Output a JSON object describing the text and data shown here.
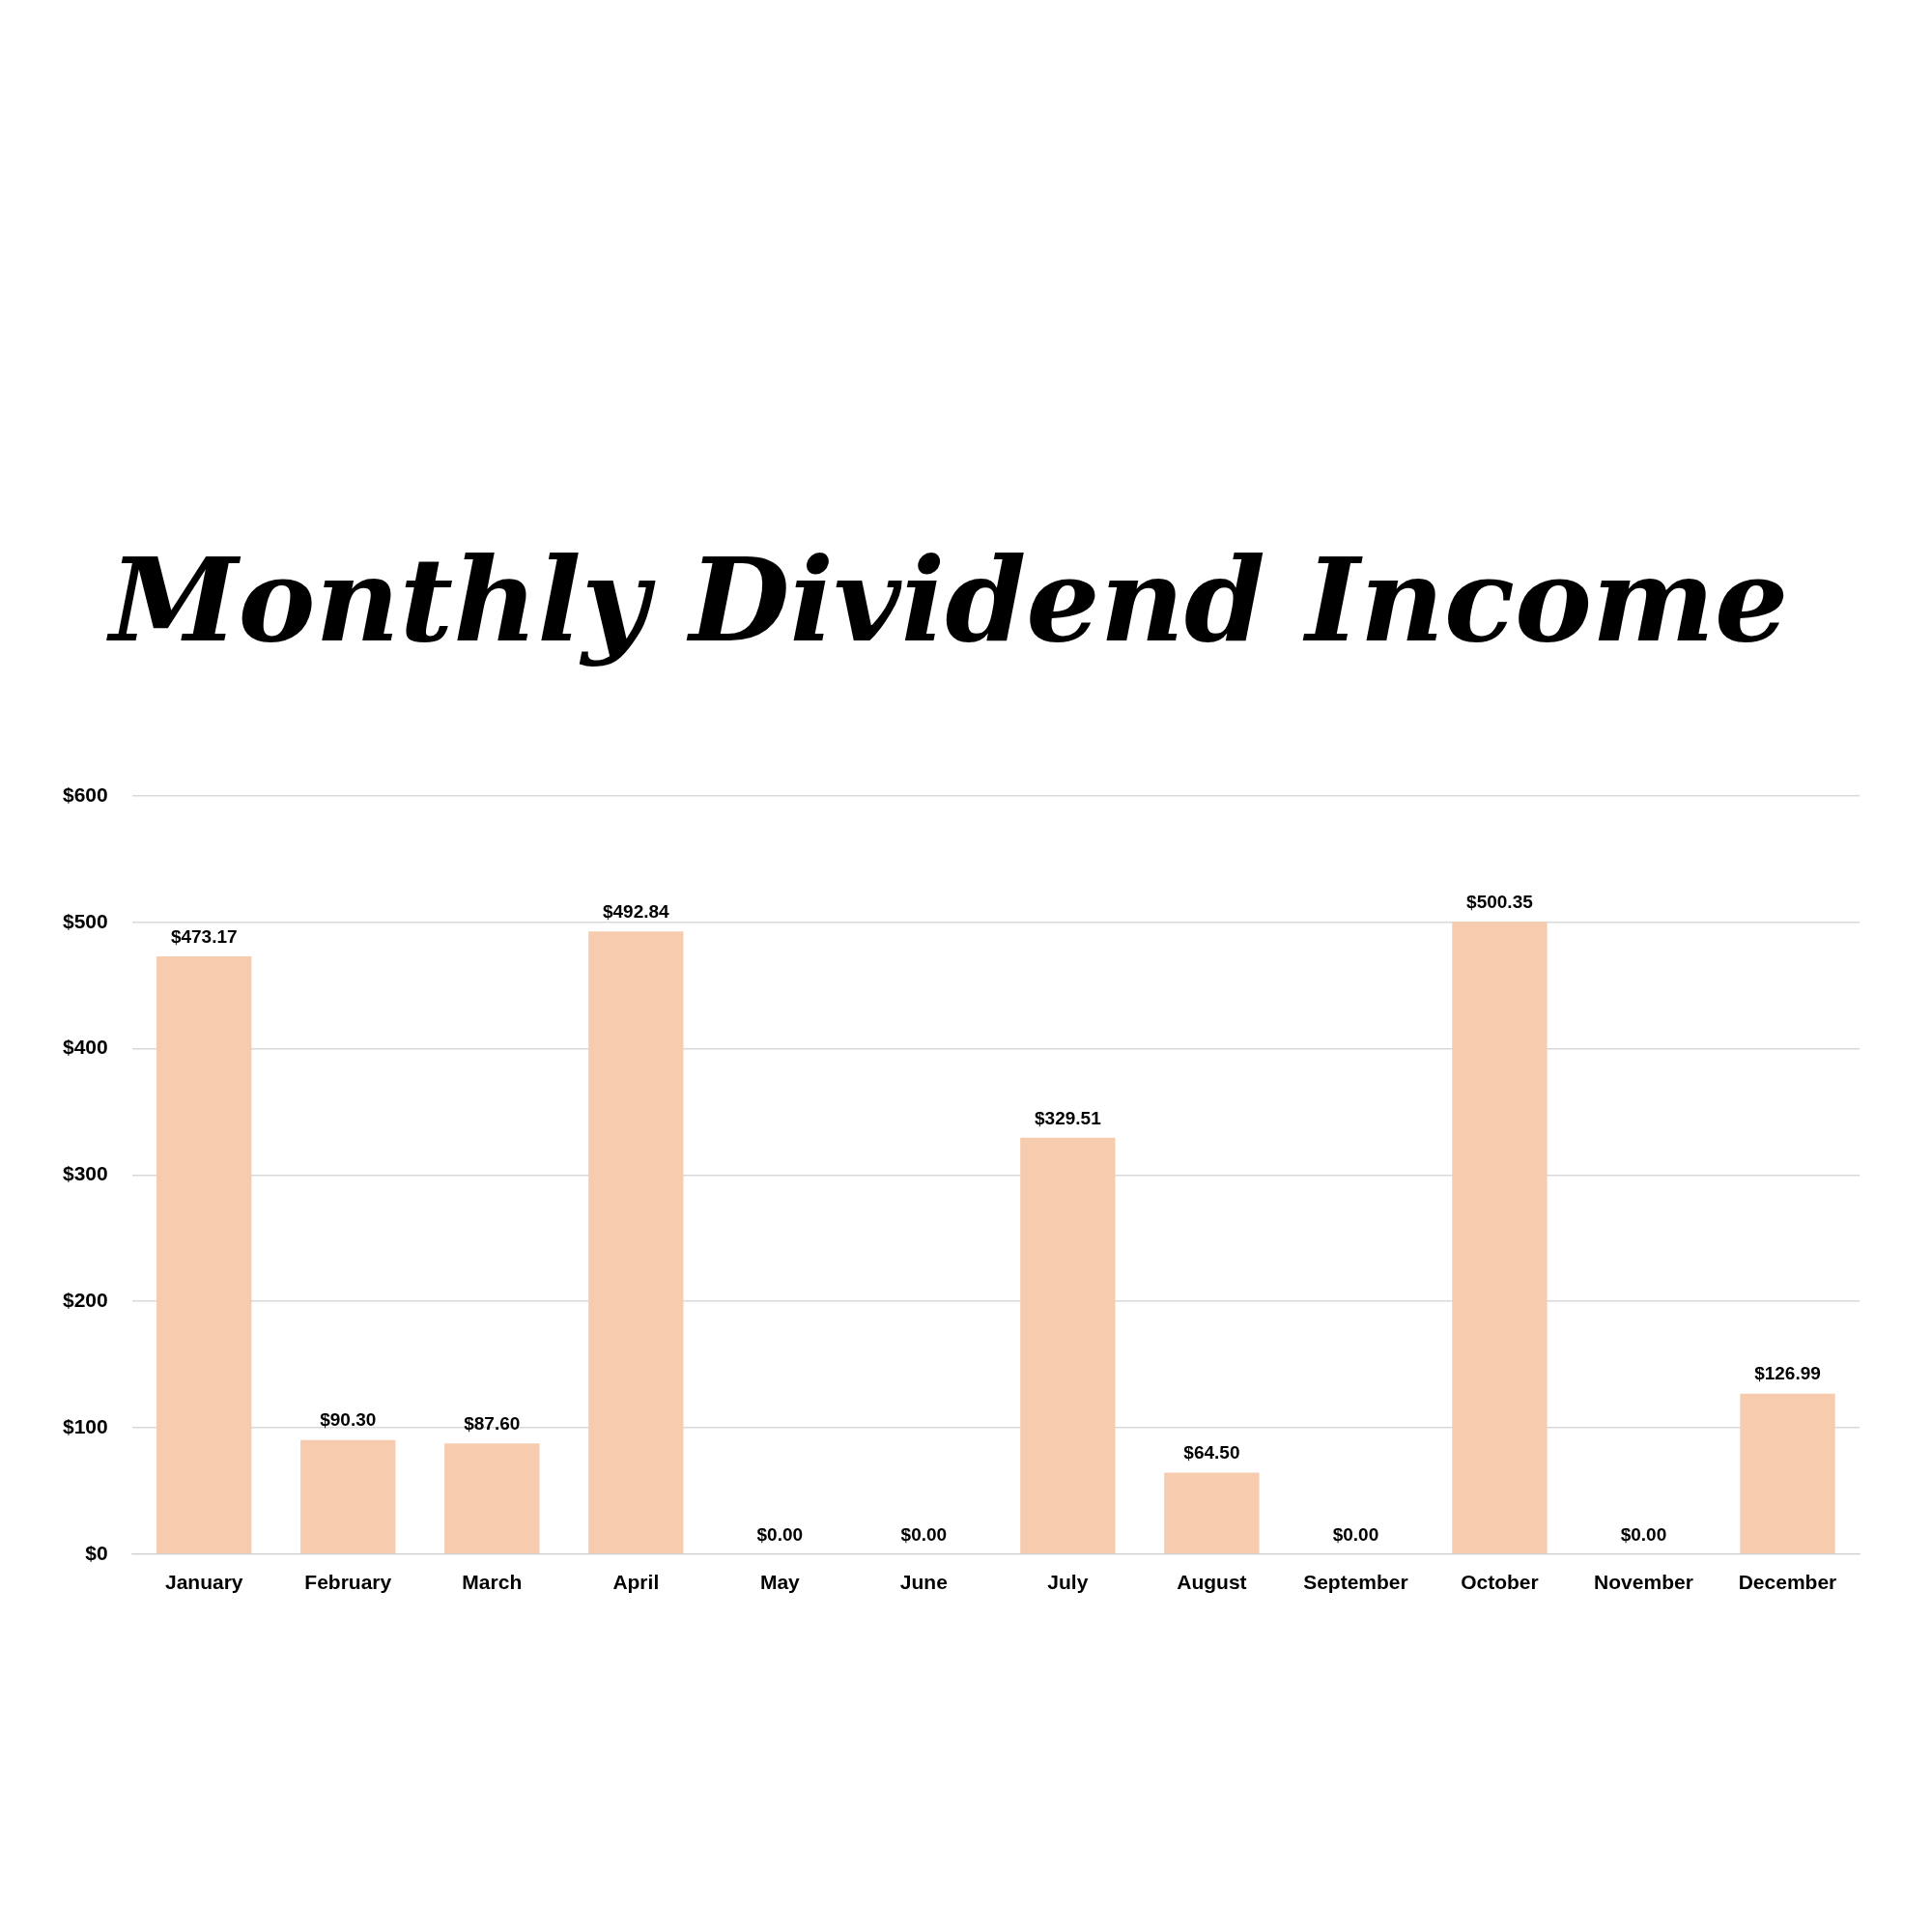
{
  "chart_data": {
    "type": "bar",
    "title": "Monthly Dividend Income",
    "categories": [
      "January",
      "February",
      "March",
      "April",
      "May",
      "June",
      "July",
      "August",
      "September",
      "October",
      "November",
      "December"
    ],
    "values": [
      473.17,
      90.3,
      87.6,
      492.84,
      0,
      0,
      329.51,
      64.5,
      0,
      500.35,
      0,
      126.99
    ],
    "value_labels": [
      "$473.17",
      "$90.30",
      "$87.60",
      "$492.84",
      "$0.00",
      "$0.00",
      "$329.51",
      "$64.50",
      "$0.00",
      "$500.35",
      "$0.00",
      "$126.99"
    ],
    "color": "#f7cbad",
    "ylim": [
      0,
      600
    ],
    "yticks": [
      {
        "value": 0,
        "label": "$0"
      },
      {
        "value": 100,
        "label": "$100"
      },
      {
        "value": 200,
        "label": "$200"
      },
      {
        "value": 300,
        "label": "$300"
      },
      {
        "value": 400,
        "label": "$400"
      },
      {
        "value": 500,
        "label": "$500"
      },
      {
        "value": 600,
        "label": "$600"
      }
    ],
    "grid": "y",
    "legend": false
  }
}
